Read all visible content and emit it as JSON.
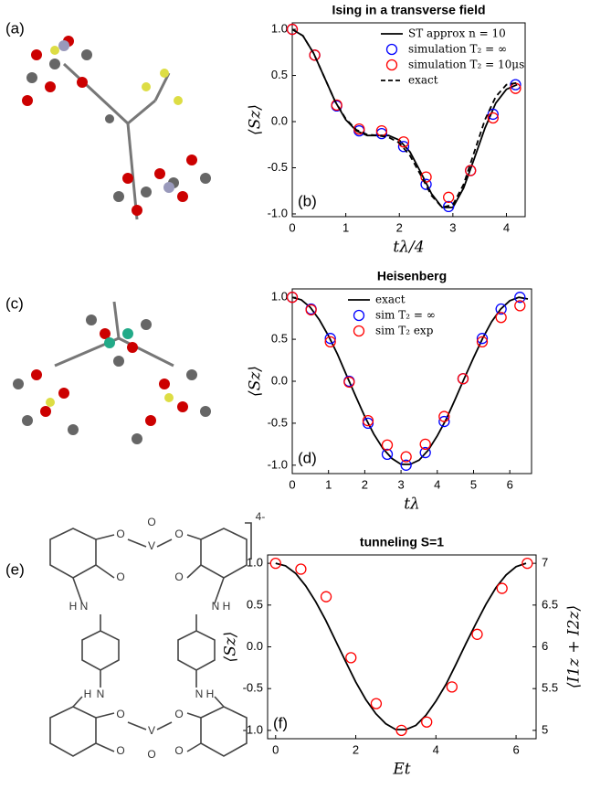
{
  "panels": [
    "(a)",
    "(c)",
    "(e)"
  ],
  "molecule_e": {
    "labels": [
      "O",
      "V",
      "O",
      "O",
      "O",
      "O",
      "N",
      "H",
      "H",
      "N",
      "N",
      "H",
      "H",
      "N",
      "O",
      "O",
      "V",
      "O",
      "O",
      "O",
      "4-"
    ]
  },
  "chart_data": [
    {
      "type": "line",
      "title": "Ising in a transverse field",
      "annotation": "(b)",
      "xlabel": "tλ/4",
      "ylabel": "⟨Sz⟩",
      "legend": "upper right",
      "xlim": [
        0,
        4.35
      ],
      "xticks": [
        0,
        1,
        2,
        3,
        4
      ],
      "ylim": [
        -1.03,
        1.07
      ],
      "yticks": [
        {
          "value": -1,
          "label": "-1.0"
        },
        {
          "value": -0.5,
          "label": "-0.5"
        },
        {
          "value": 0,
          "label": "0.0"
        },
        {
          "value": 0.5,
          "label": "0.5"
        },
        {
          "value": 1,
          "label": "1.0"
        }
      ],
      "series": [
        {
          "name": "ST approx n = 10",
          "color": "#000000",
          "style": "solid",
          "x": [
            0,
            0.2,
            0.4,
            0.6,
            0.8,
            1.0,
            1.2,
            1.4,
            1.6,
            1.8,
            2.0,
            2.2,
            2.4,
            2.6,
            2.8,
            3.0,
            3.2,
            3.4,
            3.6,
            3.8,
            4.0,
            4.2
          ],
          "values": [
            1,
            0.93,
            0.74,
            0.48,
            0.22,
            0.02,
            -0.1,
            -0.15,
            -0.15,
            -0.15,
            -0.2,
            -0.33,
            -0.55,
            -0.78,
            -0.93,
            -0.93,
            -0.72,
            -0.4,
            -0.07,
            0.2,
            0.35,
            0.4
          ]
        },
        {
          "name": "simulation T₂ = ∞",
          "color": "#0000ff",
          "marker": "circle",
          "x": [
            0,
            0.42,
            0.83,
            1.25,
            1.67,
            2.08,
            2.5,
            2.92,
            3.33,
            3.75,
            4.17
          ],
          "values": [
            1,
            0.72,
            0.17,
            -0.1,
            -0.13,
            -0.27,
            -0.68,
            -0.92,
            -0.53,
            0.08,
            0.4
          ]
        },
        {
          "name": "simulation T₂ = 10μs",
          "color": "#ff0000",
          "marker": "circle",
          "x": [
            0,
            0.42,
            0.83,
            1.25,
            1.67,
            2.08,
            2.5,
            2.92,
            3.33,
            3.75,
            4.17
          ],
          "values": [
            1,
            0.72,
            0.18,
            -0.08,
            -0.1,
            -0.22,
            -0.6,
            -0.82,
            -0.53,
            0.04,
            0.36
          ]
        },
        {
          "name": "exact",
          "color": "#000000",
          "style": "dashed",
          "x": [
            0,
            0.2,
            0.4,
            0.6,
            0.8,
            1.0,
            1.2,
            1.4,
            1.6,
            1.8,
            2.0,
            2.2,
            2.4,
            2.6,
            2.8,
            3.0,
            3.2,
            3.4,
            3.6,
            3.8,
            4.0,
            4.2
          ],
          "values": [
            1,
            0.93,
            0.74,
            0.48,
            0.22,
            0.03,
            -0.09,
            -0.14,
            -0.15,
            -0.17,
            -0.23,
            -0.37,
            -0.58,
            -0.8,
            -0.93,
            -0.9,
            -0.68,
            -0.33,
            0.02,
            0.27,
            0.4,
            0.42
          ]
        }
      ]
    },
    {
      "type": "line",
      "title": "Heisenberg",
      "annotation": "(d)",
      "xlabel": "tλ",
      "ylabel": "⟨Sz⟩",
      "legend": "upper center",
      "xlim": [
        0,
        6.6
      ],
      "xticks": [
        0,
        1,
        2,
        3,
        4,
        5,
        6
      ],
      "ylim": [
        -1.1,
        1.1
      ],
      "yticks": [
        {
          "value": -1,
          "label": "-1.0"
        },
        {
          "value": -0.5,
          "label": "-0.5"
        },
        {
          "value": 0,
          "label": "0.0"
        },
        {
          "value": 0.5,
          "label": "0.5"
        },
        {
          "value": 1,
          "label": "1.0"
        }
      ],
      "series": [
        {
          "name": "exact",
          "color": "#000000",
          "style": "solid",
          "x": [
            0,
            0.25,
            0.5,
            0.75,
            1,
            1.25,
            1.5,
            1.75,
            2,
            2.25,
            2.5,
            2.75,
            3,
            3.25,
            3.5,
            3.75,
            4,
            4.25,
            4.5,
            4.75,
            5,
            5.25,
            5.5,
            5.75,
            6,
            6.25,
            6.5
          ],
          "values": [
            1,
            0.97,
            0.88,
            0.73,
            0.54,
            0.32,
            0.07,
            -0.18,
            -0.42,
            -0.63,
            -0.8,
            -0.92,
            -0.99,
            -0.99,
            -0.94,
            -0.82,
            -0.65,
            -0.45,
            -0.21,
            0.04,
            0.28,
            0.51,
            0.71,
            0.86,
            0.96,
            1,
            0.98
          ]
        },
        {
          "name": "sim T₂ = ∞",
          "color": "#0000ff",
          "marker": "circle",
          "x": [
            0,
            0.52,
            1.05,
            1.57,
            2.09,
            2.62,
            3.14,
            3.67,
            4.19,
            4.71,
            5.24,
            5.76,
            6.28
          ],
          "values": [
            1,
            0.86,
            0.51,
            0,
            -0.5,
            -0.87,
            -1,
            -0.85,
            -0.48,
            0.03,
            0.51,
            0.86,
            1
          ]
        },
        {
          "name": "sim T₂ exp",
          "color": "#ff0000",
          "marker": "circle",
          "x": [
            0,
            0.52,
            1.05,
            1.57,
            2.09,
            2.62,
            3.14,
            3.67,
            4.19,
            4.71,
            5.24,
            5.76,
            6.28
          ],
          "values": [
            1,
            0.85,
            0.47,
            -0.01,
            -0.47,
            -0.76,
            -0.9,
            -0.75,
            -0.42,
            0.03,
            0.47,
            0.76,
            0.9
          ]
        }
      ]
    },
    {
      "type": "line",
      "title": "tunneling S=1",
      "annotation": "(f)",
      "xlabel": "Et",
      "ylabel": "⟨Sz⟩",
      "y2label": "⟨I1z + I2z⟩",
      "xlim": [
        -0.2,
        6.5
      ],
      "xticks": [
        0,
        2,
        4,
        6
      ],
      "ylim": [
        -1.1,
        1.1
      ],
      "yticks": [
        {
          "value": -1,
          "label": "-1.0"
        },
        {
          "value": -0.5,
          "label": "-0.5"
        },
        {
          "value": 0,
          "label": "0.0"
        },
        {
          "value": 0.5,
          "label": "0.5"
        },
        {
          "value": 1,
          "label": "1.0"
        }
      ],
      "y2lim": [
        4.9,
        7.1
      ],
      "y2ticks": [
        5,
        5.5,
        6,
        6.5,
        7
      ],
      "series": [
        {
          "color": "#000000",
          "style": "solid",
          "x": [
            0,
            0.25,
            0.5,
            0.75,
            1,
            1.25,
            1.5,
            1.75,
            2,
            2.25,
            2.5,
            2.75,
            3,
            3.25,
            3.5,
            3.75,
            4,
            4.25,
            4.5,
            4.75,
            5,
            5.25,
            5.5,
            5.75,
            6,
            6.25
          ],
          "values": [
            1,
            0.97,
            0.88,
            0.73,
            0.54,
            0.32,
            0.07,
            -0.18,
            -0.42,
            -0.63,
            -0.8,
            -0.92,
            -0.99,
            -0.99,
            -0.94,
            -0.82,
            -0.65,
            -0.45,
            -0.21,
            0.04,
            0.28,
            0.51,
            0.71,
            0.86,
            0.96,
            1
          ]
        },
        {
          "color": "#ff0000",
          "marker": "circle",
          "axis": "y2",
          "x": [
            0,
            0.63,
            1.26,
            1.88,
            2.51,
            3.14,
            3.77,
            4.4,
            5.03,
            5.65,
            6.28
          ],
          "values": [
            7,
            6.93,
            6.6,
            5.87,
            5.32,
            5,
            5.1,
            5.52,
            6.15,
            6.7,
            7
          ]
        }
      ]
    }
  ]
}
